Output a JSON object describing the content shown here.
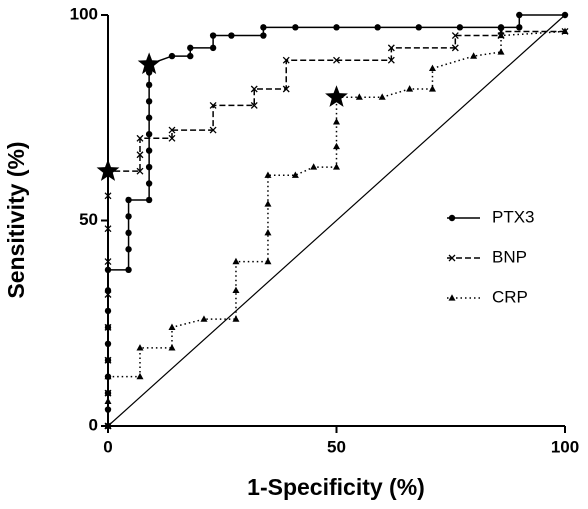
{
  "chart_data": {
    "type": "line",
    "xlabel": "1-Specificity (%)",
    "ylabel": "Sensitivity (%)",
    "xlim": [
      0,
      100
    ],
    "ylim": [
      0,
      100
    ],
    "xticks": [
      0,
      50,
      100
    ],
    "yticks": [
      0,
      50,
      100
    ],
    "legend": "right",
    "series": [
      {
        "name": "PTX3",
        "color": "#000000",
        "dash": "solid",
        "marker": "circle",
        "x": [
          0,
          0,
          0,
          0,
          0,
          0,
          0,
          0,
          0,
          0,
          4.5,
          4.5,
          4.5,
          4.5,
          4.5,
          9,
          9,
          9,
          9,
          9,
          9,
          9,
          9,
          9,
          9,
          14,
          18,
          18,
          23,
          23,
          27,
          34,
          34,
          41,
          50,
          59,
          68,
          77,
          86,
          90,
          90,
          100
        ],
        "y": [
          0,
          4,
          8,
          12,
          16,
          20,
          24,
          28,
          33,
          38,
          38,
          43,
          47,
          51,
          55,
          55,
          59,
          63,
          67,
          71,
          75,
          79,
          83,
          86,
          88,
          90,
          90,
          92,
          92,
          95,
          95,
          95,
          97,
          97,
          97,
          97,
          97,
          97,
          97,
          97,
          100,
          100
        ]
      },
      {
        "name": "BNP",
        "color": "#000000",
        "dash": "dashed",
        "marker": "x",
        "x": [
          0,
          0,
          0,
          0,
          0,
          0,
          0,
          0,
          0,
          7,
          7,
          7,
          14,
          14,
          23,
          23,
          32,
          32,
          39,
          39,
          50,
          62,
          62,
          76,
          76,
          86,
          86,
          100
        ],
        "y": [
          0,
          8,
          16,
          24,
          32,
          40,
          48,
          56,
          62,
          62,
          66,
          70,
          70,
          72,
          72,
          78,
          78,
          82,
          82,
          89,
          89,
          89,
          92,
          92,
          95,
          95,
          96,
          96
        ]
      },
      {
        "name": "CRP",
        "color": "#000000",
        "dash": "dotted",
        "marker": "triangle",
        "x": [
          0,
          0,
          0,
          7,
          7,
          14,
          14,
          21,
          28,
          28,
          28,
          35,
          35,
          35,
          35,
          41,
          45,
          50,
          50,
          50,
          50,
          55,
          60,
          66,
          71,
          71,
          80,
          86,
          86,
          100
        ],
        "y": [
          0,
          6,
          12,
          12,
          19,
          19,
          24,
          26,
          26,
          33,
          40,
          40,
          47,
          54,
          61,
          61,
          63,
          63,
          68,
          74,
          80,
          80,
          80,
          82,
          82,
          87,
          90,
          91,
          95,
          96
        ]
      }
    ],
    "markers": [
      {
        "x": 0,
        "y": 62
      },
      {
        "x": 9,
        "y": 88
      },
      {
        "x": 50,
        "y": 80
      }
    ]
  }
}
